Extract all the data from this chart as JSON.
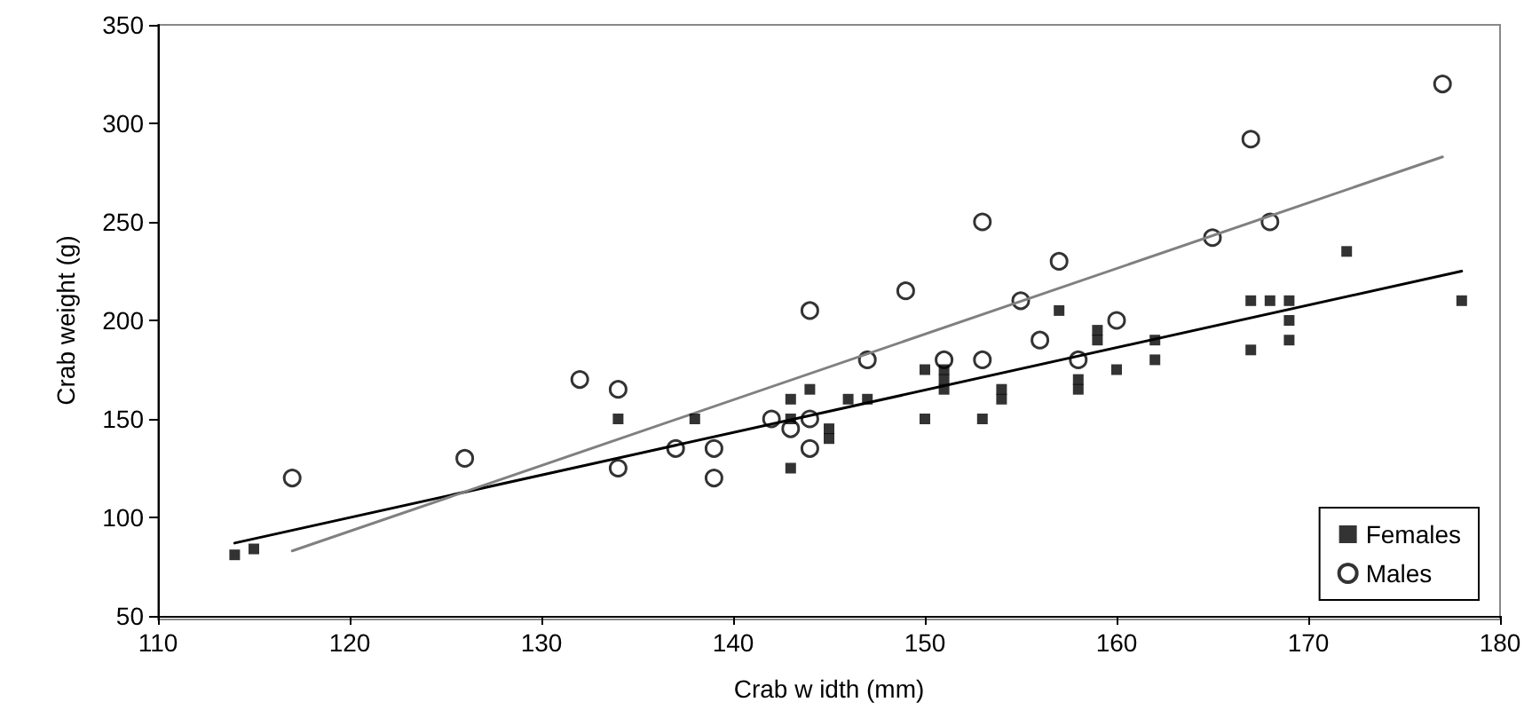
{
  "chart_data": {
    "type": "scatter",
    "xlabel": "Crab w idth (mm)",
    "ylabel": "Crab weight (g)",
    "xlim": [
      110,
      180
    ],
    "xticks": [
      110,
      120,
      130,
      140,
      150,
      160,
      170,
      180
    ],
    "ylim": [
      50,
      350
    ],
    "yticks": [
      50,
      100,
      150,
      200,
      250,
      300,
      350
    ],
    "grid": false,
    "legend": "bottom right",
    "series": [
      {
        "name": "Females",
        "color": "#000000",
        "marker": "square",
        "x": [
          114,
          115,
          134,
          138,
          143,
          143,
          143,
          144,
          145,
          145,
          146,
          147,
          150,
          150,
          151,
          151,
          151,
          153,
          154,
          154,
          157,
          158,
          158,
          159,
          159,
          160,
          162,
          162,
          167,
          167,
          168,
          169,
          169,
          169,
          172,
          178
        ],
        "values": [
          81,
          84,
          150,
          150,
          125,
          150,
          160,
          165,
          140,
          145,
          160,
          160,
          150,
          175,
          165,
          170,
          175,
          150,
          160,
          165,
          205,
          165,
          170,
          190,
          195,
          175,
          180,
          190,
          185,
          210,
          210,
          190,
          200,
          210,
          235,
          210
        ]
      },
      {
        "name": "Males",
        "color": "#000000",
        "marker": "circle",
        "x": [
          117,
          126,
          132,
          134,
          134,
          137,
          139,
          139,
          142,
          143,
          144,
          144,
          144,
          147,
          149,
          151,
          153,
          153,
          155,
          156,
          157,
          158,
          160,
          165,
          167,
          168,
          177
        ],
        "values": [
          120,
          130,
          170,
          125,
          165,
          135,
          120,
          135,
          150,
          145,
          135,
          150,
          205,
          180,
          215,
          180,
          180,
          250,
          210,
          190,
          230,
          180,
          200,
          242,
          292,
          250,
          320
        ]
      },
      {
        "type": "line",
        "color": "#000000",
        "marker": "none",
        "x": [
          114,
          178
        ],
        "values": [
          87,
          225
        ]
      },
      {
        "type": "line",
        "color": "#808080",
        "marker": "none",
        "x": [
          117,
          177
        ],
        "values": [
          83,
          283
        ]
      }
    ]
  }
}
